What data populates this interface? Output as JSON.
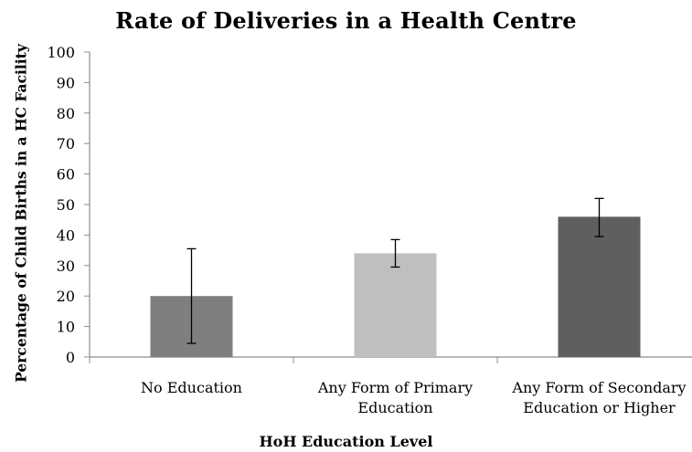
{
  "chart_data": {
    "type": "bar",
    "title": "Rate of Deliveries in a Health Centre",
    "xlabel": "HoH Education Level",
    "ylabel": "Percentage of Child Births in a HC Facility",
    "ylim": [
      0,
      100
    ],
    "yticks": [
      0,
      10,
      20,
      30,
      40,
      50,
      60,
      70,
      80,
      90,
      100
    ],
    "categories": [
      [
        "No Education"
      ],
      [
        "Any Form of Primary",
        "Education"
      ],
      [
        "Any Form of Secondary",
        "Education or Higher"
      ]
    ],
    "values": [
      20,
      34,
      46
    ],
    "error_low": [
      4.5,
      29.5,
      39.5
    ],
    "error_high": [
      35.5,
      38.5,
      52
    ],
    "colors": [
      "#7f7f7f",
      "#bfbfbf",
      "#5f5f5f"
    ],
    "grid": false,
    "legend": "none"
  }
}
